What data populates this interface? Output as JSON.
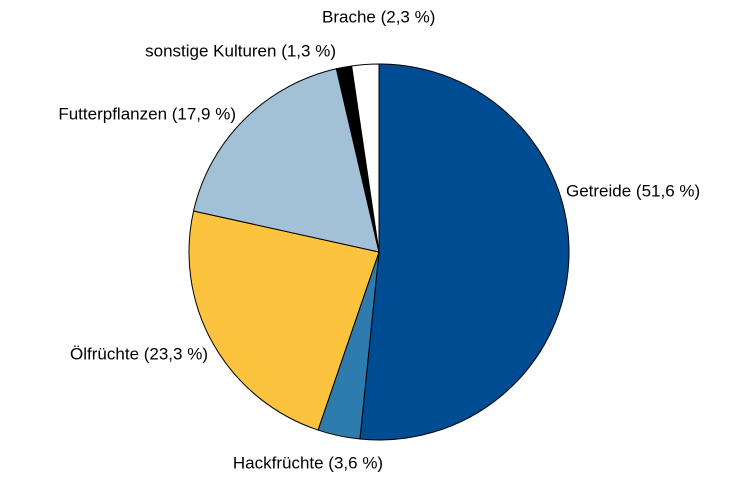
{
  "chart_data": {
    "type": "pie",
    "categories": [
      "Getreide (51,6 %)",
      "Hackfrüchte (3,6 %)",
      "Ölfrüchte (23,3 %)",
      "Futterpflanzen (17,9 %)",
      "sonstige Kulturen (1,3 %)",
      "Brache (2,3 %)"
    ],
    "values": [
      51.6,
      3.6,
      23.3,
      17.9,
      1.3,
      2.3
    ],
    "colors": [
      "#004c93",
      "#2e7bae",
      "#fbc33e",
      "#a3c1d6",
      "#000000",
      "#ffffff"
    ]
  }
}
